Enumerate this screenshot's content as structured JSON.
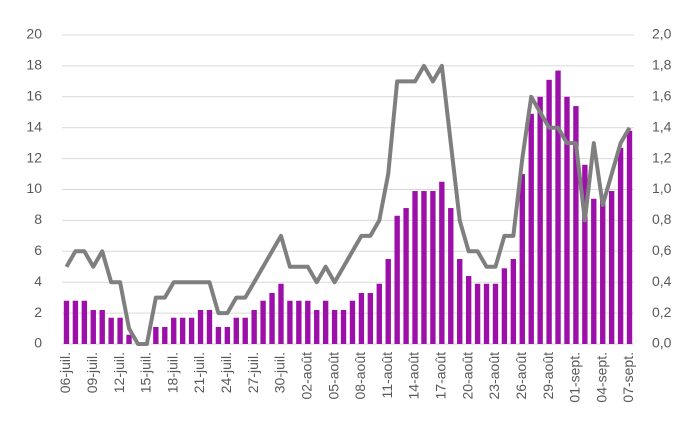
{
  "chart_data": {
    "type": "bar",
    "categories": [
      "06-juil.",
      null,
      null,
      "09-juil.",
      null,
      null,
      "12-juil.",
      null,
      null,
      "15-juil.",
      null,
      null,
      "18-juil.",
      null,
      null,
      "21-juil.",
      null,
      null,
      "24-juil.",
      null,
      null,
      "27-juil.",
      null,
      null,
      "30-juil.",
      null,
      null,
      "02-août",
      null,
      null,
      "05-août",
      null,
      null,
      "08-août",
      null,
      null,
      "11-août",
      null,
      null,
      "14-août",
      null,
      null,
      "17-août",
      null,
      null,
      "20-août",
      null,
      null,
      "23-août",
      null,
      null,
      "26-août",
      null,
      null,
      "29-août",
      null,
      null,
      "01-sept.",
      null,
      null,
      "04-sept.",
      null,
      null,
      "07-sept."
    ],
    "series": [
      {
        "type": "bar",
        "color": "#9c0fa9",
        "values": [
          2.8,
          2.8,
          2.8,
          2.2,
          2.2,
          1.7,
          1.7,
          0.6,
          0,
          0,
          1.1,
          1.1,
          1.7,
          1.7,
          1.7,
          2.2,
          2.2,
          1.1,
          1.1,
          1.7,
          1.7,
          2.2,
          2.8,
          3.3,
          3.9,
          2.8,
          2.8,
          2.8,
          2.2,
          2.8,
          2.2,
          2.2,
          2.8,
          3.3,
          3.3,
          3.9,
          5.5,
          8.3,
          8.8,
          9.9,
          9.9,
          9.9,
          10.5,
          8.8,
          5.5,
          4.4,
          3.9,
          3.9,
          3.9,
          4.9,
          5.5,
          11.0,
          14.9,
          16.0,
          17.1,
          17.7,
          16.0,
          15.4,
          11.6,
          9.4,
          9.4,
          9.9,
          12.7,
          13.8
        ]
      },
      {
        "type": "line",
        "axis": "y2",
        "color": "#7f7f7f",
        "values": [
          0.5,
          0.6,
          0.6,
          0.5,
          0.6,
          0.4,
          0.4,
          0.1,
          0,
          0,
          0.3,
          0.3,
          0.4,
          0.4,
          0.4,
          0.4,
          0.4,
          0.2,
          0.2,
          0.3,
          0.3,
          0.4,
          0.5,
          0.6,
          0.7,
          0.5,
          0.5,
          0.5,
          0.4,
          0.5,
          0.4,
          0.5,
          0.6,
          0.7,
          0.7,
          0.8,
          1.1,
          1.7,
          1.7,
          1.7,
          1.8,
          1.7,
          1.8,
          1.3,
          0.8,
          0.6,
          0.6,
          0.5,
          0.5,
          0.7,
          0.7,
          1.2,
          1.6,
          1.5,
          1.4,
          1.4,
          1.3,
          1.3,
          0.8,
          1.3,
          0.9,
          1.1,
          1.3,
          1.4
        ]
      }
    ],
    "ylim": [
      0,
      20
    ],
    "yticks": [
      0,
      2,
      4,
      6,
      8,
      10,
      12,
      14,
      16,
      18,
      20
    ],
    "y2lim": [
      0,
      2
    ],
    "y2ticks": [
      {
        "value": 0,
        "label": "0,0"
      },
      {
        "value": 0.2,
        "label": "0,2"
      },
      {
        "value": 0.4,
        "label": "0,4"
      },
      {
        "value": 0.6,
        "label": "0,6"
      },
      {
        "value": 0.8,
        "label": "0,8"
      },
      {
        "value": 1,
        "label": "1,0"
      },
      {
        "value": 1.2,
        "label": "1,2"
      },
      {
        "value": 1.4,
        "label": "1,4"
      },
      {
        "value": 1.6,
        "label": "1,6"
      },
      {
        "value": 1.8,
        "label": "1,8"
      },
      {
        "value": 2,
        "label": "2,0"
      }
    ],
    "grid": true
  }
}
